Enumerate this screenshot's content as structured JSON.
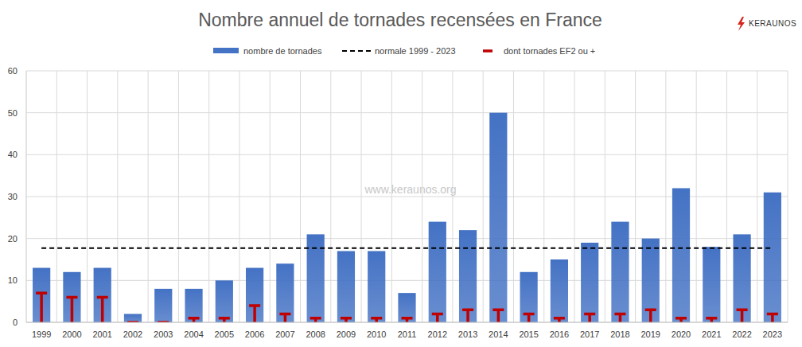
{
  "chart_data": {
    "type": "bar",
    "title": "Nombre annuel de tornades recensées en France",
    "watermark": "www.keraunos.org",
    "logo": "KERAUNOS",
    "categories": [
      "1999",
      "2000",
      "2001",
      "2002",
      "2003",
      "2004",
      "2005",
      "2006",
      "2007",
      "2008",
      "2009",
      "2010",
      "2011",
      "2012",
      "2013",
      "2014",
      "2015",
      "2016",
      "2017",
      "2018",
      "2019",
      "2020",
      "2021",
      "2022",
      "2023"
    ],
    "series": [
      {
        "name": "nombre de tornades",
        "type": "bar",
        "color": "#4472c4",
        "values": [
          13,
          12,
          13,
          2,
          8,
          8,
          10,
          13,
          14,
          21,
          17,
          17,
          7,
          24,
          22,
          50,
          12,
          15,
          19,
          24,
          20,
          32,
          18,
          21,
          31
        ]
      },
      {
        "name": "normale 1999 - 2023",
        "type": "line",
        "color": "#000000",
        "line_style": "dashed",
        "values": [
          17.72,
          17.72,
          17.72,
          17.72,
          17.72,
          17.72,
          17.72,
          17.72,
          17.72,
          17.72,
          17.72,
          17.72,
          17.72,
          17.72,
          17.72,
          17.72,
          17.72,
          17.72,
          17.72,
          17.72,
          17.72,
          17.72,
          17.72,
          17.72,
          17.72
        ]
      },
      {
        "name": "dont tornades EF2 ou +",
        "type": "stem",
        "marker": "dash",
        "color": "#c00000",
        "values": [
          7,
          6,
          6,
          0,
          0,
          1,
          1,
          4,
          2,
          1,
          1,
          1,
          1,
          2,
          3,
          3,
          2,
          1,
          2,
          2,
          3,
          1,
          1,
          3,
          2
        ]
      }
    ],
    "ylim": [
      0,
      60
    ],
    "yticks": [
      0,
      10,
      20,
      30,
      40,
      50,
      60
    ],
    "grid": true,
    "legend": "top"
  }
}
